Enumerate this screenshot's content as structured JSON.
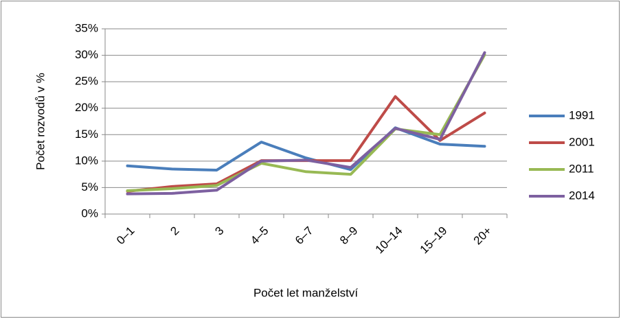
{
  "chart_data": {
    "type": "line",
    "x_label": "Počet let manželství",
    "y_label": "Počet rozvodů v %",
    "categories": [
      "0–1",
      "2",
      "3",
      "4–5",
      "6–7",
      "8–9",
      "10–14",
      "15–19",
      "20+"
    ],
    "series": [
      {
        "name": "1991",
        "color": "#4a7ebb",
        "values": [
          9.1,
          8.5,
          8.3,
          13.6,
          10.6,
          8.4,
          16.3,
          13.2,
          12.8
        ]
      },
      {
        "name": "2001",
        "color": "#be4b48",
        "values": [
          4.3,
          5.2,
          5.7,
          10.1,
          10.1,
          10.1,
          22.2,
          13.9,
          19.1
        ]
      },
      {
        "name": "2011",
        "color": "#98b954",
        "values": [
          4.4,
          4.8,
          5.4,
          9.6,
          8.0,
          7.5,
          16.1,
          15.0,
          30.1
        ]
      },
      {
        "name": "2014",
        "color": "#7d60a0",
        "values": [
          3.8,
          3.9,
          4.5,
          10.0,
          10.2,
          8.8,
          16.2,
          14.1,
          30.5
        ]
      }
    ],
    "ylim": [
      0,
      35
    ],
    "yticks": [
      {
        "value": 0,
        "label": "0%"
      },
      {
        "value": 5,
        "label": "5%"
      },
      {
        "value": 10,
        "label": "10%"
      },
      {
        "value": 15,
        "label": "15%"
      },
      {
        "value": 20,
        "label": "20%"
      },
      {
        "value": 25,
        "label": "25%"
      },
      {
        "value": 30,
        "label": "30%"
      },
      {
        "value": 35,
        "label": "35%"
      }
    ],
    "grid": true,
    "legend": "right"
  }
}
